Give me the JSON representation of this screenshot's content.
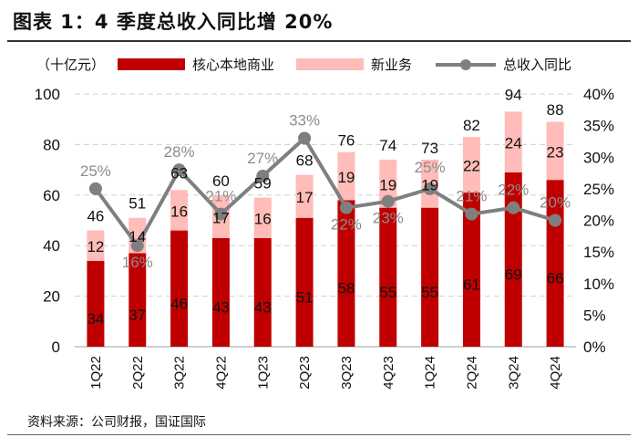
{
  "title": "图表 1：4 季度总收入同比增 20%",
  "source": "资料来源：公司财报，国证国际",
  "chart_data": {
    "type": "bar",
    "stacked": true,
    "unit_label": "（十亿元）",
    "categories": [
      "1Q22",
      "2Q22",
      "3Q22",
      "4Q22",
      "1Q23",
      "2Q23",
      "3Q23",
      "4Q23",
      "1Q24",
      "2Q24",
      "3Q24",
      "4Q24"
    ],
    "series": [
      {
        "name": "核心本地商业",
        "type": "bar",
        "axis": "left",
        "color": "#c00000",
        "values": [
          34,
          37,
          46,
          43,
          43,
          51,
          58,
          55,
          55,
          61,
          69,
          66
        ]
      },
      {
        "name": "新业务",
        "type": "bar",
        "axis": "left",
        "color": "#ffbcb8",
        "values": [
          12,
          14,
          16,
          17,
          16,
          17,
          19,
          19,
          19,
          22,
          24,
          23
        ]
      },
      {
        "name": "总收入同比",
        "type": "line",
        "axis": "right",
        "color": "#7f7f7f",
        "values": [
          25,
          16,
          28,
          21,
          27,
          33,
          22,
          23,
          25,
          21,
          22,
          20
        ]
      }
    ],
    "totals": [
      46,
      51,
      63,
      60,
      59,
      68,
      76,
      74,
      73,
      82,
      94,
      88
    ],
    "left_axis": {
      "ylim": [
        0,
        100
      ],
      "ticks": [
        "0",
        "20",
        "40",
        "60",
        "80",
        "100"
      ]
    },
    "right_axis": {
      "ylim": [
        0,
        40
      ],
      "ticks": [
        "0%",
        "5%",
        "10%",
        "15%",
        "20%",
        "25%",
        "30%",
        "35%",
        "40%"
      ]
    },
    "grid": true,
    "legend": "top"
  }
}
